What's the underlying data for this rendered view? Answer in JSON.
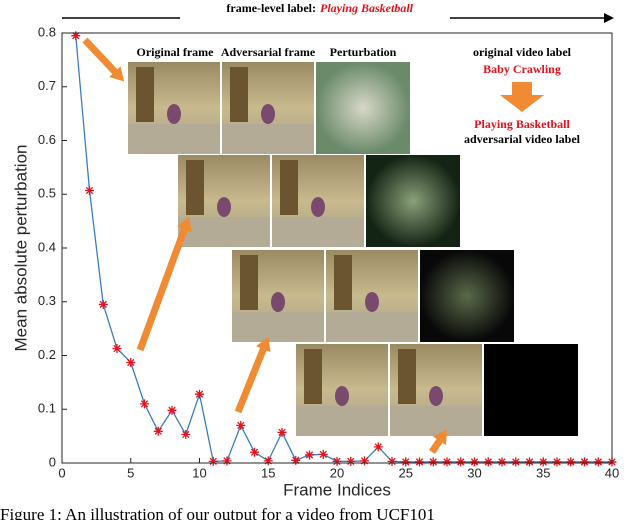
{
  "chart_data": {
    "type": "line",
    "header_label": "frame-level label:",
    "header_value": "Playing Basketball",
    "xlabel": "Frame Indices",
    "ylabel": "Mean absolute perturbation",
    "x": [
      1,
      2,
      3,
      4,
      5,
      6,
      7,
      8,
      9,
      10,
      11,
      12,
      13,
      14,
      15,
      16,
      17,
      18,
      19,
      20,
      21,
      22,
      23,
      24,
      25,
      26,
      27,
      28,
      29,
      30,
      31,
      32,
      33,
      34,
      35,
      36,
      37,
      38,
      39,
      40
    ],
    "series": [
      {
        "color": "#3a7dc0",
        "marker_color": "#e8101a",
        "values": [
          0.795,
          0.507,
          0.295,
          0.213,
          0.187,
          0.11,
          0.059,
          0.098,
          0.053,
          0.128,
          0.003,
          0.004,
          0.07,
          0.02,
          0.004,
          0.057,
          0.005,
          0.015,
          0.016,
          0.003,
          0.003,
          0.004,
          0.03,
          0.003,
          0.002,
          0.002,
          0.002,
          0.002,
          0.002,
          0.002,
          0.002,
          0.002,
          0.002,
          0.002,
          0.002,
          0.002,
          0.002,
          0.002,
          0.002,
          0.002
        ]
      }
    ],
    "xlim": [
      0,
      40
    ],
    "xticks": [
      0,
      5,
      10,
      15,
      20,
      25,
      30,
      35,
      40
    ],
    "ylim": [
      0,
      0.8
    ],
    "yticks": [
      0,
      0.1,
      0.2,
      0.3,
      0.4,
      0.5,
      0.6,
      0.7,
      0.8
    ],
    "column_titles": [
      "Original frame",
      "Adversarial frame",
      "Perturbation"
    ],
    "legend_note": {
      "original_caption": "original video label",
      "original_label": "Baby Crawling",
      "adversarial_label": "Playing Basketball",
      "adversarial_caption": "adversarial video label"
    },
    "caption": "Figure 1: An illustration of our output for a video from UCF101"
  }
}
